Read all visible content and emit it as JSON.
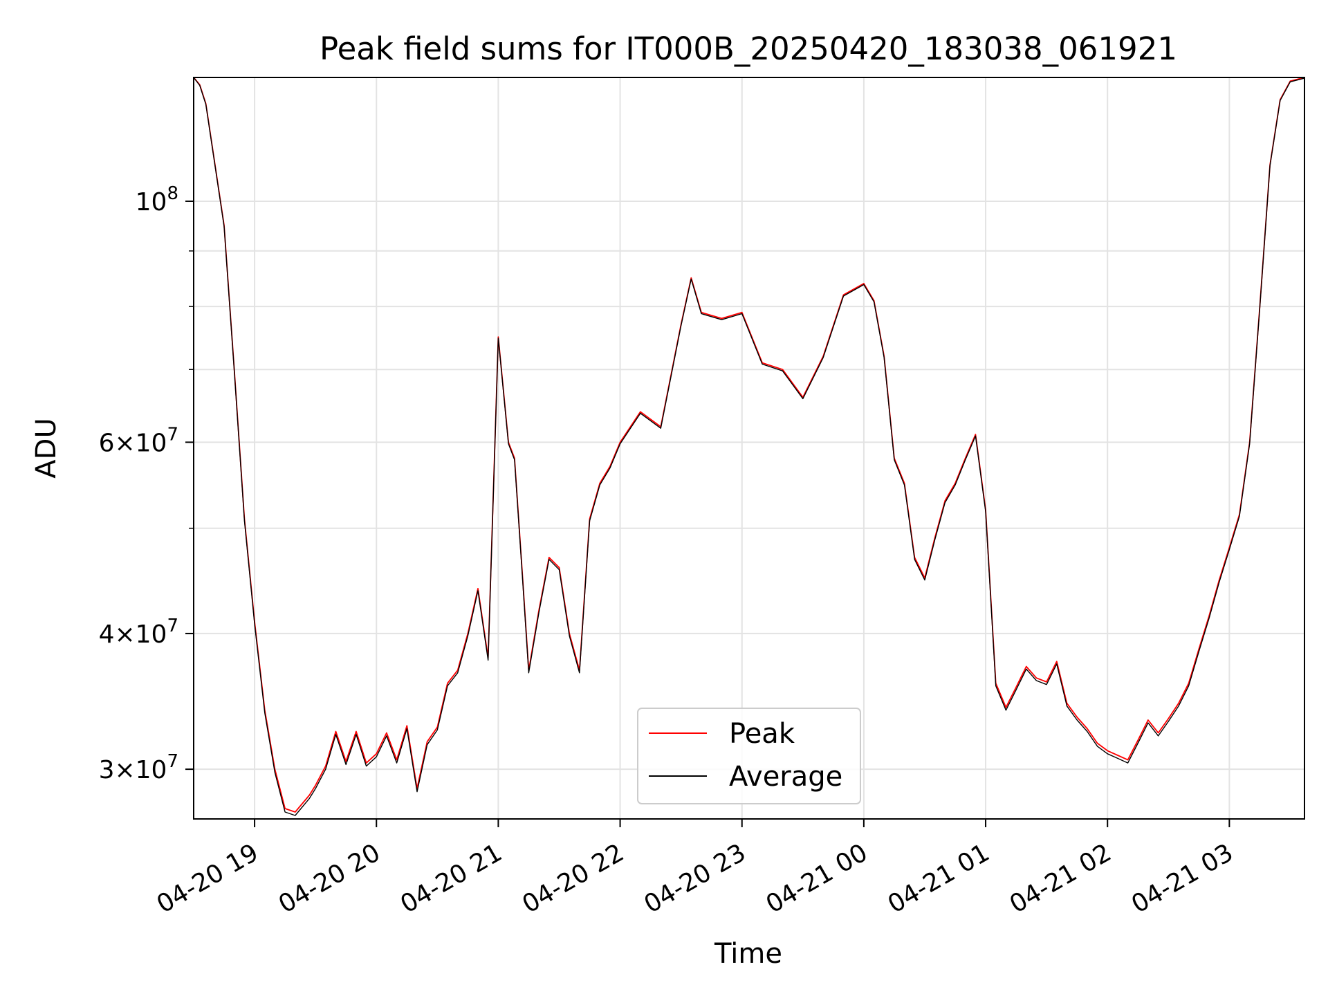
{
  "chart_data": {
    "type": "line",
    "title": "Peak field sums for IT000B_20250420_183038_061921",
    "xlabel": "Time",
    "ylabel": "ADU",
    "y_scale": "log",
    "xlim": [
      "2025-04-20 18:30",
      "2025-04-21 03:37"
    ],
    "ylim": [
      27000000,
      130000000
    ],
    "grid": true,
    "legend_placement": "bottom-center",
    "x_ticks": [
      "04-20 19",
      "04-20 20",
      "04-20 21",
      "04-20 22",
      "04-20 23",
      "04-21 00",
      "04-21 01",
      "04-21 02",
      "04-21 03"
    ],
    "y_ticks": [
      {
        "value": 100000000,
        "label": "10^8"
      },
      {
        "value": 60000000,
        "label": "6×10^7"
      },
      {
        "value": 40000000,
        "label": "4×10^7"
      },
      {
        "value": 30000000,
        "label": "3×10^7"
      }
    ],
    "x": [
      "2025-04-20 18:30",
      "2025-04-20 18:33",
      "2025-04-20 18:36",
      "2025-04-20 18:45",
      "2025-04-20 18:50",
      "2025-04-20 18:55",
      "2025-04-20 19:00",
      "2025-04-20 19:05",
      "2025-04-20 19:10",
      "2025-04-20 19:15",
      "2025-04-20 19:20",
      "2025-04-20 19:27",
      "2025-04-20 19:30",
      "2025-04-20 19:35",
      "2025-04-20 19:40",
      "2025-04-20 19:45",
      "2025-04-20 19:50",
      "2025-04-20 19:55",
      "2025-04-20 20:00",
      "2025-04-20 20:05",
      "2025-04-20 20:10",
      "2025-04-20 20:15",
      "2025-04-20 20:20",
      "2025-04-20 20:25",
      "2025-04-20 20:30",
      "2025-04-20 20:35",
      "2025-04-20 20:40",
      "2025-04-20 20:45",
      "2025-04-20 20:50",
      "2025-04-20 20:55",
      "2025-04-20 21:00",
      "2025-04-20 21:05",
      "2025-04-20 21:08",
      "2025-04-20 21:12",
      "2025-04-20 21:15",
      "2025-04-20 21:20",
      "2025-04-20 21:25",
      "2025-04-20 21:30",
      "2025-04-20 21:35",
      "2025-04-20 21:40",
      "2025-04-20 21:45",
      "2025-04-20 21:50",
      "2025-04-20 21:55",
      "2025-04-20 22:00",
      "2025-04-20 22:10",
      "2025-04-20 22:20",
      "2025-04-20 22:30",
      "2025-04-20 22:35",
      "2025-04-20 22:40",
      "2025-04-20 22:50",
      "2025-04-20 23:00",
      "2025-04-20 23:10",
      "2025-04-20 23:20",
      "2025-04-20 23:30",
      "2025-04-20 23:40",
      "2025-04-20 23:50",
      "2025-04-21 00:00",
      "2025-04-21 00:05",
      "2025-04-21 00:10",
      "2025-04-21 00:15",
      "2025-04-21 00:20",
      "2025-04-21 00:25",
      "2025-04-21 00:30",
      "2025-04-21 00:35",
      "2025-04-21 00:40",
      "2025-04-21 00:45",
      "2025-04-21 00:50",
      "2025-04-21 00:55",
      "2025-04-21 01:00",
      "2025-04-21 01:05",
      "2025-04-21 01:10",
      "2025-04-21 01:15",
      "2025-04-21 01:20",
      "2025-04-21 01:25",
      "2025-04-21 01:30",
      "2025-04-21 01:35",
      "2025-04-21 01:40",
      "2025-04-21 01:45",
      "2025-04-21 01:50",
      "2025-04-21 01:55",
      "2025-04-21 02:00",
      "2025-04-21 02:05",
      "2025-04-21 02:10",
      "2025-04-21 02:15",
      "2025-04-21 02:20",
      "2025-04-21 02:25",
      "2025-04-21 02:30",
      "2025-04-21 02:35",
      "2025-04-21 02:40",
      "2025-04-21 02:45",
      "2025-04-21 02:50",
      "2025-04-21 02:55",
      "2025-04-21 03:00",
      "2025-04-21 03:05",
      "2025-04-21 03:10",
      "2025-04-21 03:15",
      "2025-04-21 03:20",
      "2025-04-21 03:25",
      "2025-04-21 03:30",
      "2025-04-21 03:37"
    ],
    "series": [
      {
        "name": "Peak",
        "color": "#ff0000",
        "values": [
          130000000,
          128000000,
          123000000,
          95000000,
          70000000,
          51000000,
          41000000,
          34000000,
          30000000,
          27600000,
          27400000,
          28400000,
          29000000,
          30200000,
          32500000,
          30500000,
          32500000,
          30400000,
          31000000,
          32400000,
          30600000,
          32900000,
          28800000,
          31800000,
          32800000,
          36000000,
          37000000,
          40000000,
          44000000,
          38000000,
          75000000,
          60000000,
          58000000,
          45000000,
          37000000,
          42000000,
          47000000,
          46000000,
          40000000,
          37000000,
          51000000,
          55000000,
          57000000,
          60000000,
          64000000,
          62000000,
          77000000,
          85000000,
          79000000,
          78000000,
          79000000,
          71000000,
          70000000,
          66000000,
          72000000,
          82000000,
          84000000,
          81000000,
          72000000,
          58000000,
          55000000,
          47000000,
          45000000,
          49000000,
          53000000,
          55000000,
          58000000,
          61000000,
          52000000,
          36000000,
          34200000,
          35700000,
          37300000,
          36400000,
          36100000,
          37700000,
          34500000,
          33500000,
          32700000,
          31700000,
          31200000,
          30900000,
          30600000,
          31900000,
          33300000,
          32400000,
          33400000,
          34500000,
          36000000,
          38700000,
          41500000,
          44800000,
          48000000,
          51500000,
          60000000,
          80000000,
          108000000,
          124000000,
          129000000,
          130000000
        ]
      },
      {
        "name": "Average",
        "color": "#000000",
        "values": [
          130000000,
          127800000,
          122800000,
          94800000,
          69800000,
          50800000,
          40800000,
          33800000,
          29800000,
          27400000,
          27200000,
          28200000,
          28800000,
          30000000,
          32300000,
          30300000,
          32300000,
          30200000,
          30800000,
          32200000,
          30400000,
          32700000,
          28600000,
          31600000,
          32600000,
          35800000,
          36800000,
          39800000,
          43800000,
          37800000,
          74800000,
          59800000,
          57800000,
          44800000,
          36800000,
          41800000,
          46800000,
          45800000,
          39800000,
          36800000,
          50800000,
          54800000,
          56800000,
          59800000,
          63800000,
          61800000,
          76800000,
          84800000,
          78800000,
          77800000,
          78800000,
          70800000,
          69800000,
          65800000,
          71800000,
          81800000,
          83800000,
          80800000,
          71800000,
          57800000,
          54800000,
          46800000,
          44800000,
          48800000,
          52800000,
          54800000,
          57800000,
          60800000,
          51800000,
          35800000,
          34000000,
          35500000,
          37100000,
          36200000,
          35900000,
          37500000,
          34300000,
          33300000,
          32500000,
          31500000,
          31000000,
          30700000,
          30400000,
          31700000,
          33100000,
          32200000,
          33200000,
          34300000,
          35800000,
          38500000,
          41300000,
          44600000,
          47800000,
          51300000,
          59800000,
          79800000,
          107800000,
          123800000,
          128800000,
          129800000
        ]
      }
    ]
  }
}
